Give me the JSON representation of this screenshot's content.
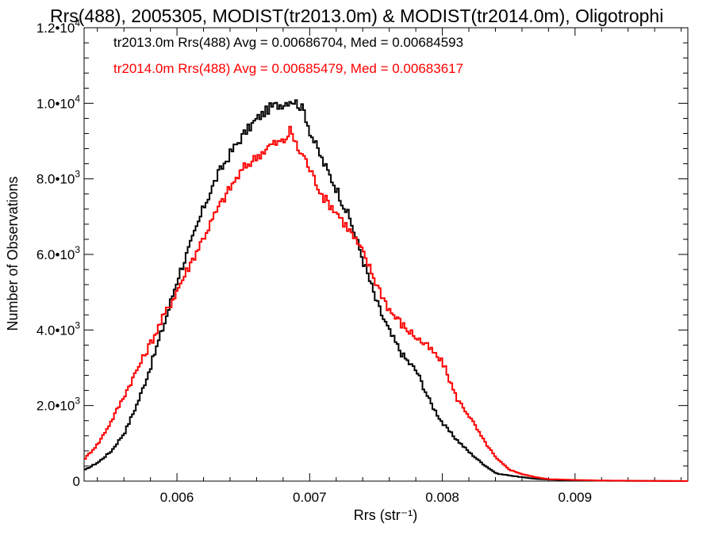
{
  "chart_data": {
    "type": "line",
    "title": "Rrs(488), 2005305, MODIST(tr2013.0m) & MODIST(tr2014.0m), Oligotrophi",
    "xlabel": "Rrs (str⁻¹)",
    "ylabel": "Number of Observations",
    "xlim": [
      0.0053,
      0.00985
    ],
    "ylim": [
      0,
      12000
    ],
    "x_ticks": [
      {
        "value": 0.006,
        "label": "0.006"
      },
      {
        "value": 0.007,
        "label": "0.007"
      },
      {
        "value": 0.008,
        "label": "0.008"
      },
      {
        "value": 0.009,
        "label": "0.009"
      }
    ],
    "y_ticks": [
      {
        "value": 0,
        "mant": "0",
        "exp": ""
      },
      {
        "value": 2000,
        "mant": "2.0•10",
        "exp": "3"
      },
      {
        "value": 4000,
        "mant": "4.0•10",
        "exp": "3"
      },
      {
        "value": 6000,
        "mant": "6.0•10",
        "exp": "3"
      },
      {
        "value": 8000,
        "mant": "8.0•10",
        "exp": "3"
      },
      {
        "value": 10000,
        "mant": "1.0•10",
        "exp": "4"
      },
      {
        "value": 12000,
        "mant": "1.2•10",
        "exp": "4"
      }
    ],
    "legend": [
      {
        "text": "tr2013.0m Rrs(488) Avg = 0.00686704, Med = 0.00684593",
        "color": "#000000"
      },
      {
        "text": "tr2014.0m Rrs(488) Avg = 0.00685479, Med = 0.00683617",
        "color": "#ff0000"
      }
    ],
    "series": [
      {
        "color": "#000000",
        "x": [
          0.0053,
          0.0054,
          0.0055,
          0.0056,
          0.0057,
          0.0058,
          0.0059,
          0.006,
          0.0061,
          0.0062,
          0.0063,
          0.0064,
          0.0065,
          0.0066,
          0.0067,
          0.0068,
          0.00685,
          0.0069,
          0.00695,
          0.007,
          0.0071,
          0.0072,
          0.0073,
          0.0074,
          0.0075,
          0.0076,
          0.0077,
          0.0078,
          0.0079,
          0.008,
          0.0081,
          0.0082,
          0.0083,
          0.0084,
          0.0085,
          0.0086,
          0.0087,
          0.0088,
          0.009,
          0.0092,
          0.00985
        ],
        "y": [
          300,
          500,
          800,
          1300,
          2100,
          3100,
          4200,
          5400,
          6300,
          7300,
          8100,
          8700,
          9200,
          9600,
          9900,
          10000,
          10100,
          10000,
          9800,
          9200,
          8400,
          7700,
          6900,
          5800,
          4700,
          3900,
          3300,
          2900,
          2100,
          1500,
          1100,
          750,
          450,
          200,
          150,
          100,
          60,
          40,
          20,
          10,
          0
        ]
      },
      {
        "color": "#ff0000",
        "x": [
          0.0053,
          0.0054,
          0.0055,
          0.0056,
          0.0057,
          0.0058,
          0.0059,
          0.006,
          0.0061,
          0.0062,
          0.0063,
          0.0064,
          0.0065,
          0.0066,
          0.0067,
          0.0068,
          0.00685,
          0.0069,
          0.00695,
          0.007,
          0.0071,
          0.0072,
          0.0073,
          0.0074,
          0.0075,
          0.0076,
          0.0077,
          0.0078,
          0.0079,
          0.008,
          0.0081,
          0.0082,
          0.0083,
          0.0084,
          0.0085,
          0.0086,
          0.0087,
          0.0088,
          0.009,
          0.0092,
          0.00985
        ],
        "y": [
          600,
          1000,
          1600,
          2300,
          3000,
          3700,
          4400,
          5100,
          5800,
          6500,
          7200,
          7800,
          8300,
          8600,
          8900,
          9000,
          9300,
          8800,
          8600,
          8200,
          7500,
          7100,
          6600,
          6000,
          5200,
          4500,
          4100,
          3800,
          3500,
          3100,
          2200,
          1700,
          1100,
          600,
          300,
          180,
          100,
          50,
          30,
          15,
          0
        ]
      }
    ]
  }
}
